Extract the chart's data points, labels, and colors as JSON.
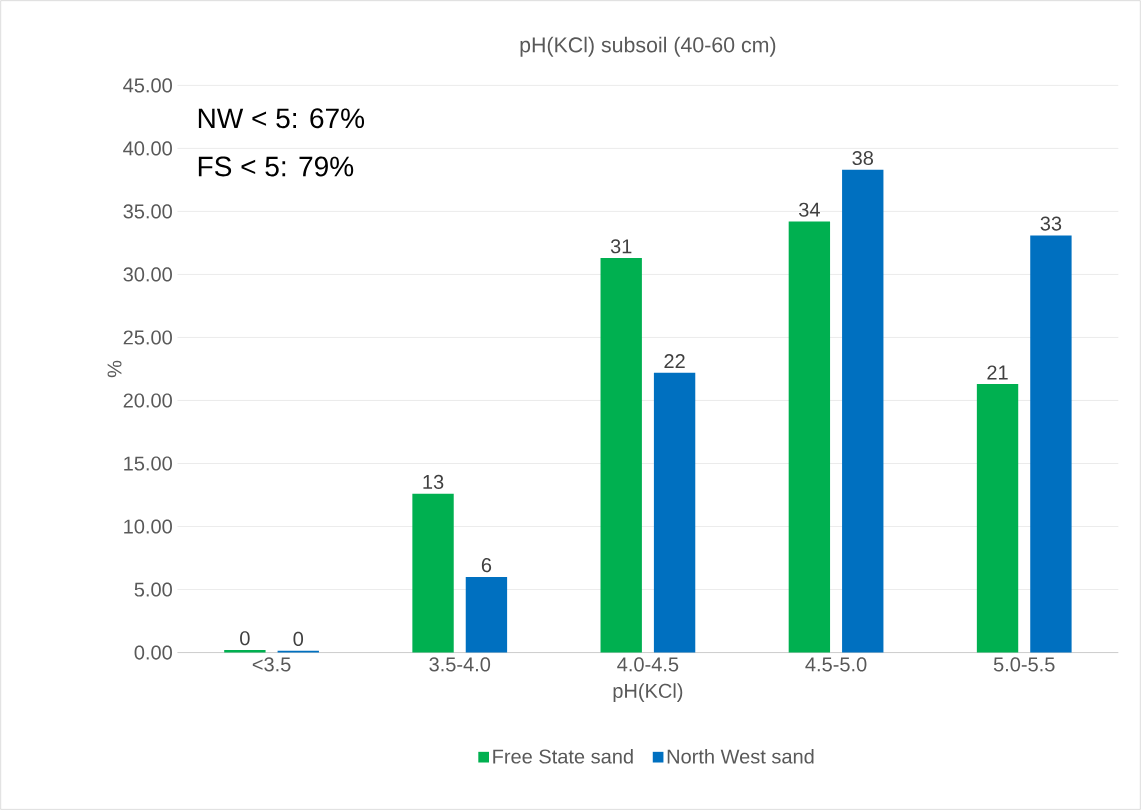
{
  "chart_data": {
    "type": "bar",
    "title": "pH(KCl) subsoil (40-60 cm)",
    "xlabel": "pH(KCl)",
    "ylabel": "%",
    "categories": [
      "<3.5",
      "3.5-4.0",
      "4.0-4.5",
      "4.5-5.0",
      "5.0-5.5"
    ],
    "series": [
      {
        "name": "Free State sand",
        "color": "#00b050",
        "values": [
          0.2,
          12.6,
          31.3,
          34.2,
          21.3
        ],
        "value_labels": [
          "0",
          "13",
          "31",
          "34",
          "21"
        ]
      },
      {
        "name": "North West sand",
        "color": "#0070c0",
        "values": [
          0.15,
          6.0,
          22.2,
          38.3,
          33.1
        ],
        "value_labels": [
          "0",
          "6",
          "22",
          "38",
          "33"
        ]
      }
    ],
    "ylim": [
      0,
      45
    ],
    "yticks": [
      {
        "value": 0,
        "label": "0.00"
      },
      {
        "value": 5,
        "label": "5.00"
      },
      {
        "value": 10,
        "label": "10.00"
      },
      {
        "value": 15,
        "label": "15.00"
      },
      {
        "value": 20,
        "label": "20.00"
      },
      {
        "value": 25,
        "label": "25.00"
      },
      {
        "value": 30,
        "label": "30.00"
      },
      {
        "value": 35,
        "label": "35.00"
      },
      {
        "value": 40,
        "label": "40.00"
      },
      {
        "value": 45,
        "label": "45.00"
      }
    ],
    "grid": "y",
    "legend": "bottom",
    "annotations": [
      "NW < 5: 67%",
      "FS < 5: 79%"
    ]
  }
}
